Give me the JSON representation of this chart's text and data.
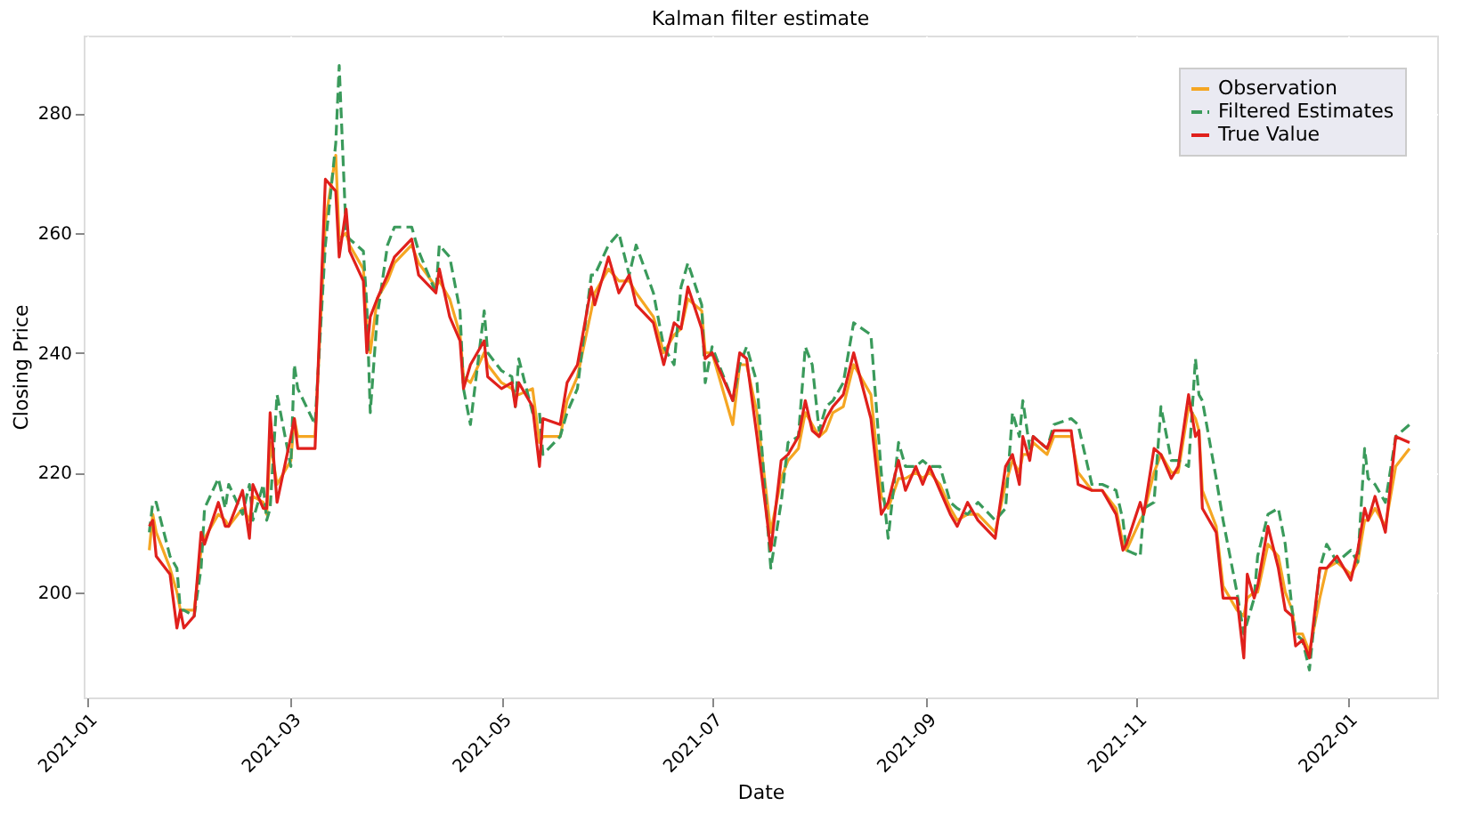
{
  "chart_data": {
    "type": "line",
    "title": "Kalman filter estimate",
    "xlabel": "Date",
    "ylabel": "Closing Price",
    "x": [
      "2021-01-19",
      "2021-01-20",
      "2021-01-21",
      "2021-01-25",
      "2021-01-27",
      "2021-01-28",
      "2021-01-29",
      "2021-02-01",
      "2021-02-03",
      "2021-02-04",
      "2021-02-08",
      "2021-02-10",
      "2021-02-11",
      "2021-02-15",
      "2021-02-17",
      "2021-02-18",
      "2021-02-21",
      "2021-02-22",
      "2021-02-23",
      "2021-02-25",
      "2021-03-01",
      "2021-03-02",
      "2021-03-03",
      "2021-03-08",
      "2021-03-11",
      "2021-03-14",
      "2021-03-15",
      "2021-03-17",
      "2021-03-18",
      "2021-03-22",
      "2021-03-23",
      "2021-03-24",
      "2021-03-26",
      "2021-03-29",
      "2021-03-31",
      "2021-04-05",
      "2021-04-07",
      "2021-04-12",
      "2021-04-13",
      "2021-04-16",
      "2021-04-19",
      "2021-04-20",
      "2021-04-22",
      "2021-04-26",
      "2021-04-27",
      "2021-05-01",
      "2021-05-04",
      "2021-05-05",
      "2021-05-06",
      "2021-05-10",
      "2021-05-12",
      "2021-05-13",
      "2021-05-18",
      "2021-05-20",
      "2021-05-23",
      "2021-05-27",
      "2021-05-28",
      "2021-06-01",
      "2021-06-04",
      "2021-06-07",
      "2021-06-09",
      "2021-06-14",
      "2021-06-17",
      "2021-06-20",
      "2021-06-22",
      "2021-06-24",
      "2021-06-28",
      "2021-06-29",
      "2021-07-01",
      "2021-07-07",
      "2021-07-09",
      "2021-07-11",
      "2021-07-14",
      "2021-07-18",
      "2021-07-21",
      "2021-07-23",
      "2021-07-26",
      "2021-07-28",
      "2021-07-30",
      "2021-08-01",
      "2021-08-03",
      "2021-08-05",
      "2021-08-08",
      "2021-08-11",
      "2021-08-16",
      "2021-08-19",
      "2021-08-21",
      "2021-08-24",
      "2021-08-26",
      "2021-08-29",
      "2021-08-31",
      "2021-09-02",
      "2021-09-05",
      "2021-09-08",
      "2021-09-10",
      "2021-09-13",
      "2021-09-16",
      "2021-09-21",
      "2021-09-24",
      "2021-09-26",
      "2021-09-28",
      "2021-09-29",
      "2021-10-01",
      "2021-10-02",
      "2021-10-06",
      "2021-10-08",
      "2021-10-13",
      "2021-10-15",
      "2021-10-19",
      "2021-10-22",
      "2021-10-26",
      "2021-10-28",
      "2021-10-29",
      "2021-11-02",
      "2021-11-03",
      "2021-11-06",
      "2021-11-08",
      "2021-11-11",
      "2021-11-13",
      "2021-11-16",
      "2021-11-18",
      "2021-11-19",
      "2021-11-20",
      "2021-11-24",
      "2021-11-26",
      "2021-11-30",
      "2021-12-02",
      "2021-12-03",
      "2021-12-05",
      "2021-12-06",
      "2021-12-09",
      "2021-12-12",
      "2021-12-14",
      "2021-12-16",
      "2021-12-17",
      "2021-12-19",
      "2021-12-21",
      "2021-12-24",
      "2021-12-26",
      "2021-12-29",
      "2022-01-02",
      "2022-01-04",
      "2022-01-06",
      "2022-01-07",
      "2022-01-09",
      "2022-01-12",
      "2022-01-15",
      "2022-01-19"
    ],
    "series": [
      {
        "name": "Observation",
        "color": "#f5a623",
        "line_style": "solid",
        "values": [
          207,
          213,
          210,
          204,
          200,
          197,
          197,
          197,
          207,
          209,
          213,
          212,
          211,
          214,
          212,
          216,
          215,
          213,
          225,
          218,
          222,
          229,
          226,
          226,
          262,
          273,
          259,
          260,
          258,
          254,
          245,
          240,
          249,
          252,
          255,
          258,
          255,
          251,
          252,
          249,
          243,
          236,
          235,
          240,
          238,
          235,
          234,
          233,
          233,
          234,
          225,
          226,
          226,
          232,
          236,
          247,
          250,
          254,
          252,
          252,
          250,
          246,
          240,
          243,
          244,
          249,
          247,
          240,
          240,
          228,
          238,
          238,
          230,
          210,
          219,
          222,
          224,
          230,
          228,
          226,
          227,
          230,
          231,
          238,
          233,
          216,
          214,
          219,
          219,
          220,
          219,
          220,
          218,
          214,
          212,
          213,
          213,
          210,
          218,
          222,
          220,
          223,
          223,
          225,
          223,
          226,
          226,
          220,
          217,
          217,
          214,
          208,
          207,
          212,
          213,
          220,
          223,
          220,
          220,
          231,
          229,
          227,
          217,
          211,
          201,
          197,
          196,
          199,
          200,
          200,
          208,
          206,
          200,
          197,
          193,
          193,
          190,
          199,
          204,
          205,
          203,
          205,
          212,
          212,
          214,
          211,
          221,
          224
        ]
      },
      {
        "name": "Filtered Estimates",
        "color": "#3a9a5b",
        "line_style": "dashed",
        "values": [
          210,
          215,
          215,
          206,
          204,
          197,
          197,
          196,
          204,
          214,
          219,
          214,
          218,
          213,
          218,
          212,
          218,
          212,
          214,
          233,
          221,
          238,
          234,
          228,
          258,
          275,
          288,
          260,
          259,
          257,
          248,
          230,
          246,
          258,
          261,
          261,
          257,
          250,
          258,
          256,
          247,
          234,
          228,
          247,
          240,
          237,
          236,
          231,
          239,
          230,
          230,
          223,
          226,
          230,
          234,
          253,
          253,
          258,
          260,
          253,
          258,
          250,
          241,
          238,
          251,
          255,
          248,
          235,
          241,
          232,
          238,
          241,
          235,
          204,
          215,
          225,
          226,
          241,
          238,
          227,
          231,
          232,
          235,
          245,
          243,
          220,
          209,
          225,
          221,
          221,
          222,
          221,
          221,
          215,
          214,
          213,
          215,
          212,
          214,
          230,
          226,
          232,
          224,
          226,
          224,
          228,
          229,
          228,
          218,
          218,
          217,
          212,
          207,
          206,
          214,
          215,
          231,
          222,
          222,
          221,
          239,
          233,
          232,
          219,
          212,
          200,
          193,
          195,
          199,
          206,
          213,
          214,
          208,
          197,
          193,
          192,
          187,
          204,
          208,
          205,
          207,
          205,
          224,
          219,
          218,
          215,
          226,
          228
        ]
      },
      {
        "name": "True Value",
        "color": "#e0201c",
        "line_style": "solid",
        "values": [
          211,
          212,
          206,
          203,
          194,
          197,
          194,
          196,
          210,
          208,
          215,
          211,
          211,
          217,
          209,
          218,
          214,
          214,
          230,
          215,
          226,
          229,
          224,
          224,
          269,
          267,
          256,
          264,
          257,
          252,
          240,
          246,
          249,
          253,
          256,
          259,
          253,
          250,
          254,
          246,
          242,
          234,
          238,
          242,
          236,
          234,
          235,
          231,
          235,
          231,
          221,
          229,
          228,
          235,
          238,
          251,
          248,
          256,
          250,
          253,
          248,
          245,
          238,
          245,
          244,
          251,
          244,
          239,
          240,
          232,
          240,
          239,
          226,
          207,
          222,
          223,
          226,
          232,
          227,
          226,
          229,
          231,
          233,
          240,
          229,
          213,
          215,
          222,
          217,
          221,
          218,
          221,
          217,
          213,
          211,
          215,
          212,
          209,
          221,
          223,
          218,
          226,
          222,
          226,
          224,
          227,
          227,
          218,
          217,
          217,
          213,
          207,
          208,
          215,
          213,
          224,
          223,
          219,
          221,
          233,
          226,
          227,
          214,
          210,
          199,
          199,
          189,
          203,
          199,
          201,
          211,
          204,
          197,
          196,
          191,
          192,
          189,
          204,
          204,
          206,
          202,
          207,
          214,
          212,
          216,
          210,
          226,
          225
        ]
      }
    ],
    "xlim": [
      "2020-12-31",
      "2022-01-27"
    ],
    "xticks": [
      {
        "value": "2021-01-01",
        "label": "2021-01"
      },
      {
        "value": "2021-03-01",
        "label": "2021-03"
      },
      {
        "value": "2021-05-01",
        "label": "2021-05"
      },
      {
        "value": "2021-07-01",
        "label": "2021-07"
      },
      {
        "value": "2021-09-01",
        "label": "2021-09"
      },
      {
        "value": "2021-11-01",
        "label": "2021-11"
      },
      {
        "value": "2022-01-01",
        "label": "2022-01"
      }
    ],
    "ylim": [
      182.4,
      293
    ],
    "yticks": [
      200,
      220,
      240,
      260,
      280
    ],
    "grid": true,
    "legend": "top right",
    "marker": "none"
  }
}
